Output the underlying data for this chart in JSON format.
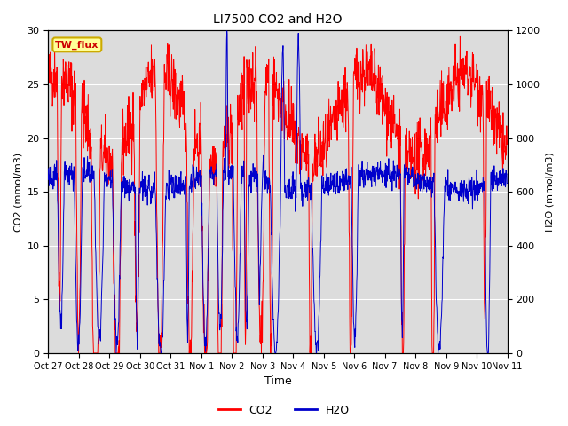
{
  "title": "LI7500 CO2 and H2O",
  "xlabel": "Time",
  "ylabel_left": "CO2 (mmol/m3)",
  "ylabel_right": "H2O (mmol/m3)",
  "ylim_left": [
    0,
    30
  ],
  "ylim_right": [
    0,
    1200
  ],
  "yticks_left": [
    0,
    5,
    10,
    15,
    20,
    25,
    30
  ],
  "yticks_right": [
    0,
    200,
    400,
    600,
    800,
    1000,
    1200
  ],
  "xtick_labels": [
    "Oct 27",
    "Oct 28",
    "Oct 29",
    "Oct 30",
    "Oct 31",
    "Nov 1",
    "Nov 2",
    "Nov 3",
    "Nov 4",
    "Nov 5",
    "Nov 6",
    "Nov 7",
    "Nov 8",
    "Nov 9",
    "Nov 10",
    "Nov 11"
  ],
  "co2_color": "#FF0000",
  "h2o_color": "#0000CC",
  "background_color": "#DCDCDC",
  "legend_label_co2": "CO2",
  "legend_label_h2o": "H2O",
  "textbox_label": "TW_flux",
  "textbox_bg": "#FFFF99",
  "textbox_edge": "#CCAA00",
  "textbox_text_color": "#CC0000",
  "n_days": 15,
  "seed": 42
}
